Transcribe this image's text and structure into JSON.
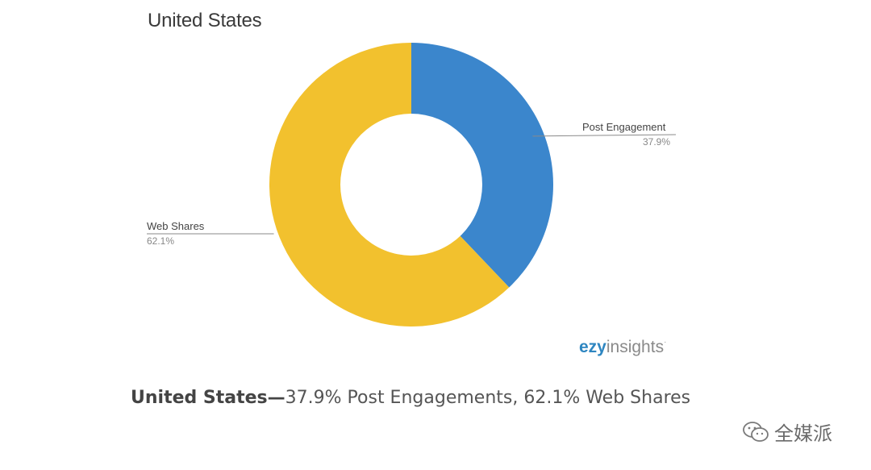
{
  "chart_data": {
    "type": "pie",
    "variant": "donut",
    "title": "United States",
    "slices": [
      {
        "label": "Post Engagement",
        "value": 37.9,
        "value_label": "37.9%",
        "color": "#3b86cc"
      },
      {
        "label": "Web Shares",
        "value": 62.1,
        "value_label": "62.1%",
        "color": "#f2c12e"
      }
    ],
    "legend": "none"
  },
  "brand": {
    "part1": "ezy",
    "part2": "insights",
    "mark": "·"
  },
  "caption": {
    "strong": "United States",
    "dash": "—",
    "rest": "37.9% Post Engagements, 62.1% Web Shares"
  },
  "watermark": {
    "text": "全媒派",
    "icon": "wechat-icon"
  }
}
